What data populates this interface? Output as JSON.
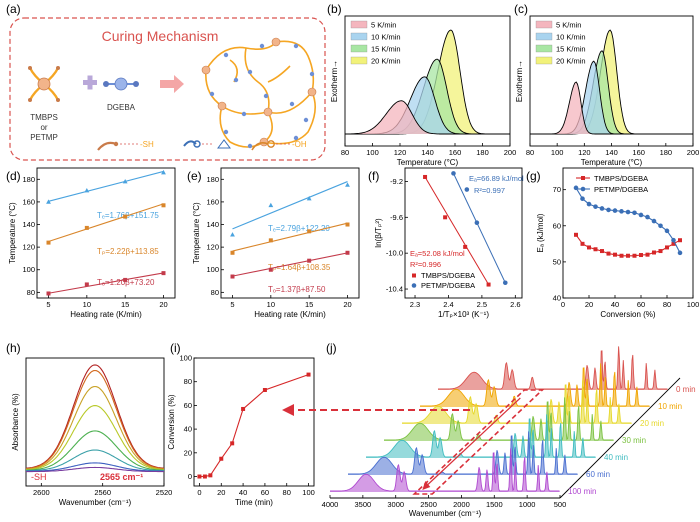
{
  "panel_letters": [
    "(a)",
    "(b)",
    "(c)",
    "(d)",
    "(e)",
    "(f)",
    "(g)",
    "(h)",
    "(i)",
    "(j)"
  ],
  "panel_a": {
    "title": "Curing Mechanism",
    "monomer_labels": [
      "TMBPS",
      "or",
      "PETMP"
    ],
    "epoxy_label": "DGEBA",
    "sh_label": "-SH",
    "oh_label": "-OH",
    "colors": {
      "border": "#d9534f",
      "title": "#d9534f",
      "arm": "#f5a623",
      "core": "#f2b48a",
      "epoxy": "#6d8fd6",
      "arrow": "#f4a6a6",
      "plus": "#b9a8d9"
    }
  },
  "panel_b": {
    "ylabel": "Exotherm→",
    "xlabel": "Temperature (°C)",
    "xticks": [
      "80",
      "100",
      "120",
      "140",
      "160",
      "180",
      "200"
    ],
    "legend": [
      "5 K/min",
      "10 K/min",
      "15 K/min",
      "20 K/min"
    ],
    "colors": [
      "#f4b6be",
      "#a9d4ef",
      "#a8e6a3",
      "#f2f27a"
    ],
    "peaks": [
      121,
      138,
      147,
      157
    ],
    "heights": [
      0.32,
      0.55,
      0.72,
      1.0
    ],
    "widths": [
      11,
      10.5,
      10,
      9.5
    ]
  },
  "panel_c": {
    "ylabel": "Exotherm→",
    "xlabel": "Temperature (°C)",
    "xticks": [
      "80",
      "100",
      "120",
      "140",
      "160",
      "180",
      "200"
    ],
    "legend": [
      "5 K/min",
      "10 K/min",
      "15 K/min",
      "20 K/min"
    ],
    "colors": [
      "#f4b6be",
      "#a9d4ef",
      "#a8e6a3",
      "#f2f27a"
    ],
    "peaks": [
      114,
      127,
      133,
      139
    ],
    "heights": [
      0.5,
      0.7,
      0.8,
      1.0
    ],
    "widths": [
      5,
      6,
      6.5,
      7
    ]
  },
  "panel_d": {
    "ylabel": "Temperature (°C)",
    "xlabel": "Heating rate (K/min)",
    "xticks": [
      "5",
      "10",
      "15",
      "20"
    ],
    "yticks": [
      "80",
      "100",
      "120",
      "140",
      "160",
      "180"
    ],
    "ylim": [
      75,
      190
    ],
    "xlim": [
      3.5,
      21.5
    ],
    "series": [
      {
        "equation": "Tₑ=1.76β+151.75",
        "slope": 1.76,
        "intercept": 151.75,
        "x": [
          5,
          10,
          15,
          20
        ],
        "y": [
          160,
          170,
          178,
          186
        ],
        "color": "#4aa3df"
      },
      {
        "equation": "Tₚ=2.22β+113.85",
        "slope": 2.22,
        "intercept": 113.85,
        "x": [
          5,
          10,
          15,
          20
        ],
        "y": [
          124,
          137,
          147,
          157
        ],
        "color": "#d9862b"
      },
      {
        "equation": "Tₒ=1.20β+73.20",
        "slope": 1.2,
        "intercept": 73.2,
        "x": [
          5,
          10,
          15,
          20
        ],
        "y": [
          79,
          87,
          91,
          97
        ],
        "color": "#c33b4b"
      }
    ]
  },
  "panel_e": {
    "ylabel": "Temperature (°C)",
    "xlabel": "Heating rate (K/min)",
    "xticks": [
      "5",
      "10",
      "15",
      "20"
    ],
    "yticks": [
      "80",
      "100",
      "120",
      "140",
      "160",
      "180"
    ],
    "ylim": [
      75,
      190
    ],
    "xlim": [
      3.5,
      21.5
    ],
    "series": [
      {
        "equation": "Tₑ=2.79β+122.20",
        "slope": 2.79,
        "intercept": 122.2,
        "x": [
          5,
          10,
          15,
          20
        ],
        "y": [
          131,
          157,
          163,
          175
        ],
        "color": "#4aa3df"
      },
      {
        "equation": "Tₚ=1.64β+108.35",
        "slope": 1.64,
        "intercept": 108.35,
        "x": [
          5,
          10,
          15,
          20
        ],
        "y": [
          115,
          126,
          134,
          140
        ],
        "color": "#d9862b"
      },
      {
        "equation": "Tₒ=1.37β+87.50",
        "slope": 1.37,
        "intercept": 87.5,
        "x": [
          5,
          10,
          15,
          20
        ],
        "y": [
          94,
          100,
          108,
          115
        ],
        "color": "#c33b4b"
      }
    ]
  },
  "panel_f": {
    "ylabel": "ln(β/Tₚ²)",
    "xlabel": "1/Tₚ×10³ (K⁻¹)",
    "xticks": [
      "2.3",
      "2.4",
      "2.5",
      "2.6"
    ],
    "yticks": [
      "-9.2",
      "-9.6",
      "-10.0",
      "-10.4"
    ],
    "xlim": [
      2.27,
      2.62
    ],
    "ylim": [
      -10.5,
      -9.05
    ],
    "series": [
      {
        "name": "TMBPS/DGEBA",
        "ea": "Eₐ=52.08 kJ/mol",
        "r2": "R²=0.996",
        "x": [
          2.33,
          2.39,
          2.45,
          2.52
        ],
        "y": [
          -9.15,
          -9.6,
          -9.93,
          -10.35
        ],
        "color": "#d62728"
      },
      {
        "name": "PETMP/DGEBA",
        "ea": "Eₐ=66.89 kJ/mol",
        "r2": "R²=0.997",
        "x": [
          2.415,
          2.455,
          2.485,
          2.57
        ],
        "y": [
          -9.11,
          -9.29,
          -9.66,
          -10.33
        ],
        "color": "#3b6fb6"
      }
    ]
  },
  "panel_g": {
    "ylabel": "Eₐ (kJ/mol)",
    "xlabel": "Conversion (%)",
    "xticks": [
      "0",
      "20",
      "40",
      "60",
      "80",
      "100"
    ],
    "yticks": [
      "40",
      "50",
      "60",
      "70"
    ],
    "xlim": [
      0,
      100
    ],
    "ylim": [
      40,
      76
    ],
    "series": [
      {
        "name": "TMBPS/DGEBA",
        "x": [
          10,
          15,
          20,
          25,
          30,
          35,
          40,
          45,
          50,
          55,
          60,
          65,
          70,
          75,
          80,
          85,
          90
        ],
        "y": [
          57.5,
          55,
          54,
          53.5,
          53,
          52.3,
          52,
          51.7,
          51.7,
          51.7,
          51.9,
          52,
          52.6,
          53,
          54,
          55,
          56
        ],
        "color": "#d62728"
      },
      {
        "name": "PETMP/DGEBA",
        "x": [
          10,
          15,
          20,
          25,
          30,
          35,
          40,
          45,
          50,
          55,
          60,
          65,
          70,
          75,
          80,
          85,
          90
        ],
        "y": [
          70.5,
          67.5,
          66,
          65.3,
          64.8,
          64.4,
          64.2,
          64,
          63.8,
          63.6,
          63,
          62.4,
          61.3,
          60,
          58.6,
          56,
          52.5
        ],
        "color": "#3b6fb6"
      }
    ]
  },
  "panel_h": {
    "ylabel": "Absorbance (%)",
    "xlabel": "Wavenumber (cm⁻¹)",
    "xticks": [
      "2600",
      "2560",
      "2520"
    ],
    "peak_label": "2565 cm⁻¹",
    "group_label": "-SH",
    "colors": [
      "#b22222",
      "#d2691e",
      "#c9a227",
      "#b8c928",
      "#4cb050",
      "#3aa0a8",
      "#3c5fc0",
      "#7a3ea0"
    ],
    "heights": [
      1.0,
      0.95,
      0.8,
      0.62,
      0.38,
      0.2,
      0.08,
      0.04
    ]
  },
  "panel_i": {
    "ylabel": "Conversion (%)",
    "xlabel": "Time (min)",
    "xticks": [
      "0",
      "20",
      "40",
      "60",
      "80",
      "100"
    ],
    "yticks": [
      "0",
      "20",
      "40",
      "60",
      "80",
      "100"
    ],
    "xlim": [
      -5,
      105
    ],
    "ylim": [
      -8,
      100
    ],
    "x": [
      0,
      5,
      10,
      20,
      30,
      40,
      60,
      100
    ],
    "y": [
      0,
      0,
      1,
      15,
      28,
      57,
      73,
      86
    ],
    "color": "#d62728"
  },
  "panel_j": {
    "xlabel": "Wavenumber (cm⁻¹)",
    "xticks": [
      "4000",
      "3500",
      "3000",
      "2500",
      "2000",
      "1500",
      "1000",
      "500"
    ],
    "time_labels": [
      "0 min",
      "10 min",
      "20 min",
      "30 min",
      "40 min",
      "60 min",
      "100 min"
    ],
    "colors": [
      "#d9534f",
      "#f0a500",
      "#e6d82a",
      "#7cc242",
      "#3fbcc0",
      "#4a6fd0",
      "#b04ad0"
    ],
    "highlight_color": "#d9303a",
    "highlight_x": 2565
  }
}
